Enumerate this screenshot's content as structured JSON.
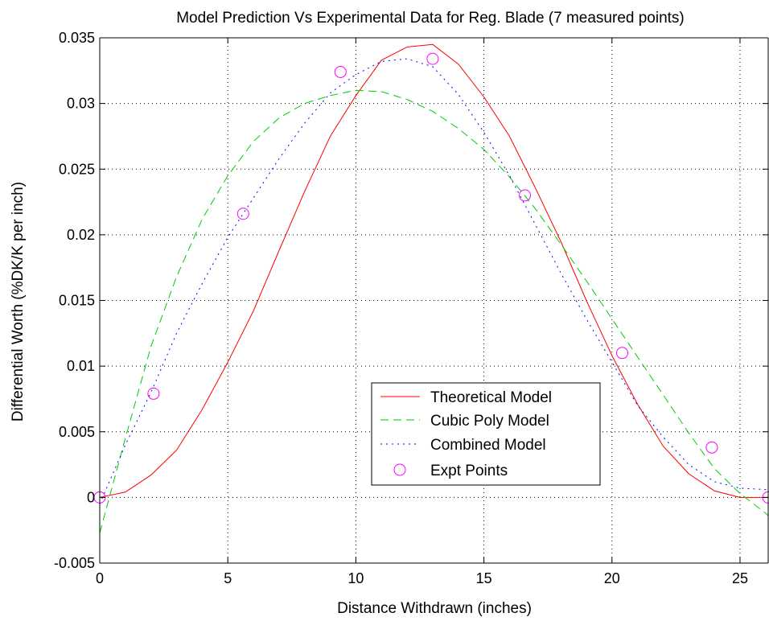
{
  "chart_data": {
    "type": "line",
    "title": "Model Prediction Vs Experimental Data for Reg. Blade (7 measured points)",
    "xlabel": "Distance Withdrawn (inches)",
    "ylabel": "Differential Worth (%DK/K per inch)",
    "xlim": [
      0,
      26.1
    ],
    "ylim": [
      -0.005,
      0.035
    ],
    "xticks": [
      0,
      5,
      10,
      15,
      20,
      25
    ],
    "xtick_labels": [
      "0",
      "5",
      "10",
      "15",
      "20",
      "25"
    ],
    "yticks": [
      -0.005,
      0,
      0.005,
      0.01,
      0.015,
      0.02,
      0.025,
      0.03,
      0.035
    ],
    "ytick_labels": [
      "-0.005",
      "0",
      "0.005",
      "0.01",
      "0.015",
      "0.02",
      "0.025",
      "0.03",
      "0.035"
    ],
    "grid": true,
    "legend_position": "lower-right",
    "series": [
      {
        "name": "Theoretical Model",
        "color": "#ff0000",
        "style": "solid",
        "x": [
          0,
          1,
          2,
          3,
          4,
          5,
          6,
          7,
          8,
          9,
          10,
          11,
          12,
          13,
          14,
          15,
          16,
          17,
          18,
          19,
          20,
          21,
          22,
          23,
          24,
          25,
          26,
          26.1
        ],
        "y": [
          0,
          0.0004,
          0.0017,
          0.0036,
          0.0067,
          0.0103,
          0.0142,
          0.0188,
          0.0233,
          0.0275,
          0.0306,
          0.0333,
          0.0343,
          0.0345,
          0.033,
          0.0305,
          0.0275,
          0.0236,
          0.0195,
          0.015,
          0.0108,
          0.0071,
          0.0039,
          0.0018,
          0.0005,
          0.0,
          0.0,
          0.0
        ]
      },
      {
        "name": "Cubic Poly Model",
        "color": "#00cc00",
        "style": "dashed",
        "x": [
          0,
          1,
          2,
          3,
          4,
          5,
          6,
          7,
          8,
          9,
          10,
          11,
          12,
          13,
          14,
          15,
          16,
          17,
          18,
          19,
          20,
          21,
          22,
          23,
          24,
          25,
          26,
          26.1
        ],
        "y": [
          -0.0027,
          0.0045,
          0.0115,
          0.0168,
          0.0212,
          0.0245,
          0.0271,
          0.0289,
          0.03,
          0.0306,
          0.031,
          0.0309,
          0.0303,
          0.0294,
          0.0281,
          0.0265,
          0.0244,
          0.022,
          0.0193,
          0.0165,
          0.0136,
          0.0107,
          0.0078,
          0.0049,
          0.0022,
          0.0003,
          -0.0012,
          -0.0014
        ]
      },
      {
        "name": "Combined Model",
        "color": "#0000ff",
        "style": "dotted",
        "x": [
          0,
          1,
          2,
          3,
          4,
          5,
          6,
          7,
          8,
          9,
          10,
          11,
          12,
          13,
          14,
          15,
          16,
          17,
          18,
          19,
          20,
          21,
          22,
          23,
          24,
          25,
          26,
          26.1
        ],
        "y": [
          -0.0005,
          0.004,
          0.008,
          0.0125,
          0.0163,
          0.0198,
          0.0228,
          0.0258,
          0.0285,
          0.0308,
          0.0322,
          0.0332,
          0.0334,
          0.0328,
          0.0307,
          0.0278,
          0.0245,
          0.0208,
          0.0171,
          0.0136,
          0.0103,
          0.007,
          0.0046,
          0.0025,
          0.0012,
          0.0007,
          0.0006,
          0.0006
        ]
      },
      {
        "name": "Expt Points",
        "color": "#ff00ff",
        "style": "markers",
        "x": [
          0,
          2.1,
          5.6,
          9.4,
          13.0,
          16.6,
          20.4,
          23.9,
          26.1
        ],
        "y": [
          0,
          0.0079,
          0.0216,
          0.0324,
          0.0334,
          0.023,
          0.011,
          0.0038,
          0
        ]
      }
    ]
  }
}
